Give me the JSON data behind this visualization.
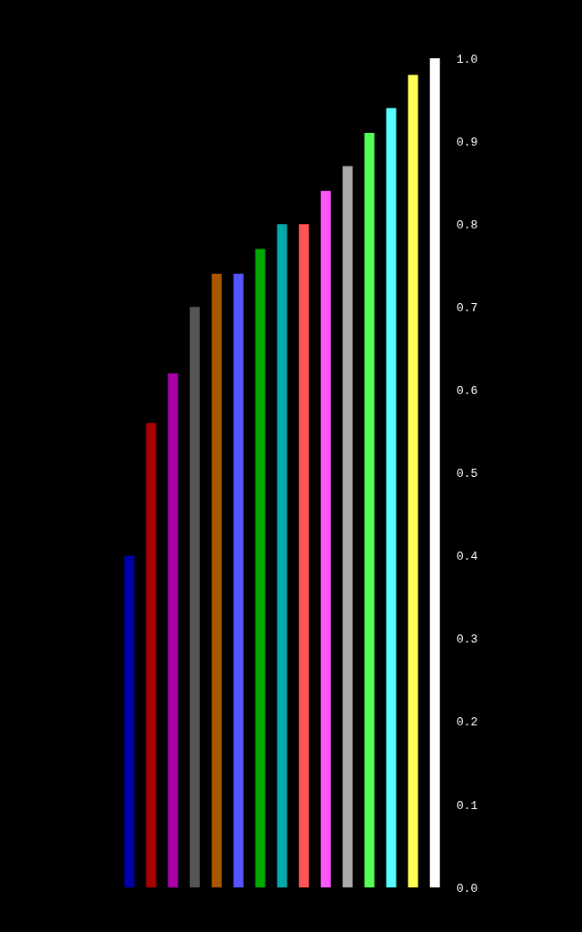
{
  "chart_data": {
    "type": "bar",
    "categories": [
      null,
      null,
      null,
      null,
      null,
      null,
      null,
      null,
      null,
      null,
      null,
      null,
      null,
      null,
      null
    ],
    "values": [
      0.4,
      0.56,
      0.62,
      0.7,
      0.74,
      0.74,
      0.77,
      0.8,
      0.8,
      0.84,
      0.87,
      0.91,
      0.94,
      0.98,
      1.0
    ],
    "colors": [
      "#0000aa",
      "#aa0000",
      "#aa00aa",
      "#555555",
      "#aa5500",
      "#5555ff",
      "#00aa00",
      "#00aaaa",
      "#ff5555",
      "#ff55ff",
      "#aaaaaa",
      "#55ff55",
      "#55ffff",
      "#ffff55",
      "#ffffff"
    ],
    "ylim": [
      0,
      1
    ],
    "yticks": [
      {
        "value": 0,
        "label": "0.0"
      },
      {
        "value": 0.1,
        "label": "0.1"
      },
      {
        "value": 0.2,
        "label": "0.2"
      },
      {
        "value": 0.3,
        "label": "0.3"
      },
      {
        "value": 0.4,
        "label": "0.4"
      },
      {
        "value": 0.5,
        "label": "0.5"
      },
      {
        "value": 0.6,
        "label": "0.6"
      },
      {
        "value": 0.7,
        "label": "0.7"
      },
      {
        "value": 0.8,
        "label": "0.8"
      },
      {
        "value": 0.9,
        "label": "0.9"
      },
      {
        "value": 1,
        "label": "1.0"
      }
    ],
    "grid": false,
    "legend": false
  }
}
